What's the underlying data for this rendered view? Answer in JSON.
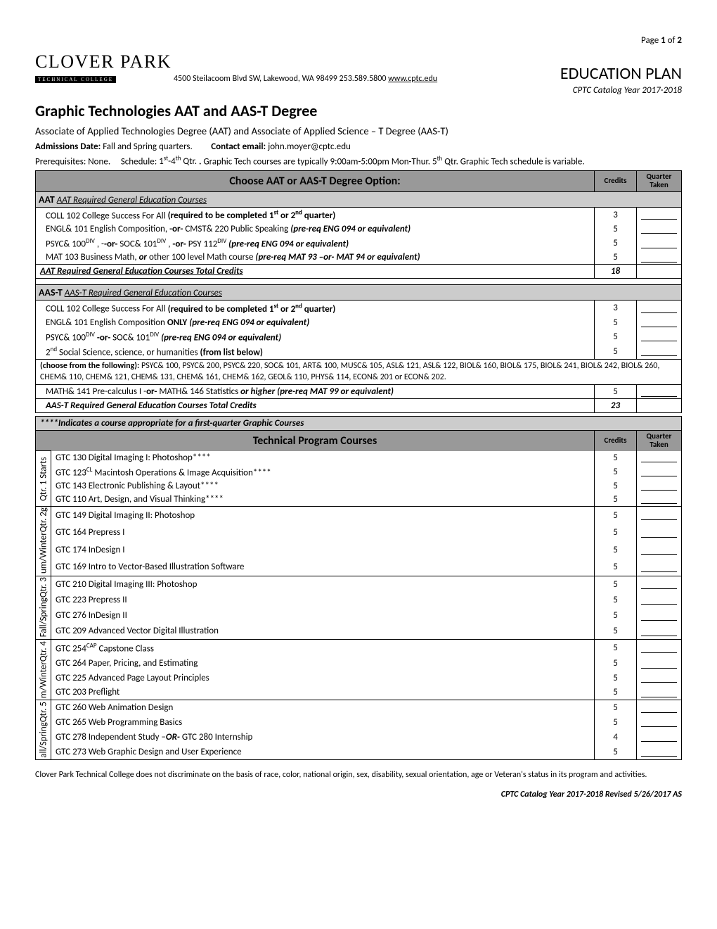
{
  "page_header": "Page 1 of 2",
  "logo": {
    "main": "CLOVER PARK",
    "sub": "TECHNICAL COLLEGE"
  },
  "address": "4500 Steilacoom Blvd SW, Lakewood, WA 98499 253.589.5800 ",
  "website": "www.cptc.edu",
  "plan_title": "EDUCATION PLAN",
  "catalog_year": "CPTC  Catalog Year 2017-2018",
  "title": "Graphic Technologies AAT and AAS-T Degree",
  "subtitle": "Associate of Applied Technologies Degree (AAT) and Associate of Applied Science – T Degree (AAS-T)",
  "admissions_label": "Admissions Date: ",
  "admissions_value": "Fall and Spring quarters.",
  "contact_label": "Contact email: ",
  "contact_value": "john.moyer@cptc.edu",
  "prereq_label": "Prerequisites: ",
  "prereq_value": "None.",
  "schedule_label": "Schedule: ",
  "schedule_value_1": "1",
  "schedule_value_sup1": "st",
  "schedule_value_2": "-4",
  "schedule_value_sup2": "th",
  "schedule_value_3": " Qtr. ",
  "schedule_body": "Graphic Tech courses are typically 9:00am-5:00pm Mon-Thur.  5",
  "schedule_sup3": "th",
  "schedule_body2": " Qtr. Graphic Tech schedule is variable.",
  "table1": {
    "header_main": "Choose AAT or AAS-T Degree Option:",
    "header_credits": "Credits",
    "header_qtr": "Quarter Taken",
    "aat_section": "AAT Required General Education Courses",
    "aat_rows": [
      {
        "name_a": "COLL 102 College Success For All  ",
        "name_b": "(required to be completed 1",
        "sup1": "st",
        "name_c": " or 2",
        "sup2": "nd",
        "name_d": " quarter)",
        "credits": "3"
      },
      {
        "name_a": "ENGL& 101 English Composition, ",
        "name_b": "-or- ",
        "name_c": "CMST& 220 Public Speaking ",
        "name_d": "(pre-req ENG 094 or equivalent)",
        "credits": "5"
      },
      {
        "name_a": "PSYC& 100",
        "sup1": "DIV",
        "name_b": " , -",
        "name_c": "-or- ",
        "name_d": " SOC& 101",
        "sup2": "DIV",
        "name_e": " , ",
        "name_f": "-or- ",
        "name_g": " PSY 112",
        "sup3": "DIV",
        "name_h": " ",
        "name_i": "(pre-req ENG 094 or equivalent)",
        "credits": "5"
      },
      {
        "name_a": "MAT 103 Business Math, ",
        "name_b": "or ",
        "name_c": "other 100 level Math course ",
        "name_d": "(pre-req MAT 93 –or- MAT 94 or equivalent)",
        "credits": "5"
      }
    ],
    "aat_total_label": "AAT Required General Education Courses Total Credits",
    "aat_total_credits": "18",
    "aast_section": "AAS-T Required General Education Courses",
    "aast_rows": [
      {
        "name_a": "COLL 102 College Success For All  ",
        "name_b": "(required to be completed 1",
        "sup1": "st",
        "name_c": " or 2",
        "sup2": "nd",
        "name_d": " quarter)",
        "credits": "3"
      },
      {
        "name_a": "ENGL& 101 English Composition ",
        "name_b": "ONLY",
        "name_c": "    ",
        "name_d": "(pre-req ENG 094 or equivalent)",
        "credits": "5"
      },
      {
        "name_a": "PSYC& 100",
        "sup1": "DIV",
        "name_b": " ",
        "name_c": "-or-",
        "name_d": "    SOC& 101",
        "sup2": "DIV",
        "name_e": "       ",
        "name_f": "(pre-req ENG 094 or equivalent)",
        "credits": "5"
      },
      {
        "name_a": "2",
        "sup1": "nd",
        "name_b": " Social Science, science, or humanities ",
        "name_c": "(from list below)",
        "credits": "5"
      }
    ],
    "choose_note_a": "(choose from the following): ",
    "choose_note_b": "PSYC& 100, PSYC& 200, PSYC& 220, SOC& 101, ART& 100, MUSC& 105, ASL& 121, ASL& 122, BIOL& 160, BIOL& 175, BIOL& 241, BIOL& 242, BIOL& 260, CHEM& 110, CHEM& 121, CHEM& 131, CHEM& 161, CHEM& 162, GEOL& 110, PHYS& 114, ECON& 201 or ECON& 202.",
    "math_row_a": "MATH& 141 Pre-calculus I  -",
    "math_row_b": "or- ",
    "math_row_c": "MATH& 146 Statistics ",
    "math_row_d": "or higher (pre-req MAT 99  or equivalent)",
    "math_credits": "5",
    "aast_total_label": "AAS-T Required General Education Courses Total Credits",
    "aast_total_credits": "23"
  },
  "indicates": "****Indicates a course appropriate for a  first-quarter Graphic Courses",
  "table2": {
    "header_main": "Technical Program Courses",
    "header_credits": "Credits",
    "header_qtr": "Quarter Taken",
    "quarters": [
      {
        "label": "Qtr. 1 Starts",
        "rows": [
          {
            "name": "GTC 130 Digital Imaging I: Photoshop****",
            "credits": "5"
          },
          {
            "name_a": "GTC 123",
            "sup": "CL",
            "name_b": " Macintosh Operations & Image Acquisition****",
            "credits": "5"
          },
          {
            "name": "GTC 143 Electronic Publishing & Layout****",
            "credits": "5"
          },
          {
            "name": "GTC 110 Art, Design, and Visual Thinking****",
            "credits": "5"
          }
        ]
      },
      {
        "label": "um/WinterQtr. 2g",
        "rows": [
          {
            "name": "GTC 149 Digital Imaging II: Photoshop",
            "credits": "5"
          },
          {
            "name": "GTC 164 Prepress I",
            "credits": "5"
          },
          {
            "name": "GTC 174 InDesign I",
            "credits": "5"
          },
          {
            "name": "GTC 169 Intro to Vector-Based Illustration Software",
            "credits": "5"
          }
        ]
      },
      {
        "label": "Fall/SpringQtr. 3",
        "rows": [
          {
            "name": "GTC 210 Digital Imaging III: Photoshop",
            "credits": "5"
          },
          {
            "name": "GTC 223 Prepress II",
            "credits": "5"
          },
          {
            "name": "GTC 276 InDesign II",
            "credits": "5"
          },
          {
            "name": "GTC 209 Advanced Vector Digital Illustration",
            "credits": "5"
          }
        ]
      },
      {
        "label": "m/WinterQtr. 4",
        "rows": [
          {
            "name_a": "GTC 254",
            "sup": "CAP",
            "name_b": " Capstone Class",
            "credits": "5"
          },
          {
            "name": "GTC 264 Paper, Pricing, and Estimating",
            "credits": "5"
          },
          {
            "name": "GTC 225 Advanced Page Layout Principles",
            "credits": "5"
          },
          {
            "name": "GTC 203 Preflight",
            "credits": "5"
          }
        ]
      },
      {
        "label": "all/SpringQtr. 5",
        "rows": [
          {
            "name": "GTC 260 Web Animation Design",
            "credits": "5"
          },
          {
            "name": "GTC 265 Web Programming Basics",
            "credits": "5"
          },
          {
            "name_a": "GTC 278 Independent Study –",
            "name_b": "OR-",
            "name_c": " GTC 280 Internship",
            "credits": "4"
          },
          {
            "name": "GTC 273 Web Graphic Design and User Experience",
            "credits": "5"
          }
        ]
      }
    ]
  },
  "nondiscrim": "Clover Park Technical College does not discriminate on the basis of race, color, national origin, sex, disability, sexual orientation, age or Veteran's status in its program and activities.",
  "footer_right": "CPTC Catalog Year 2017-2018  Revised 5/26/2017 AS"
}
